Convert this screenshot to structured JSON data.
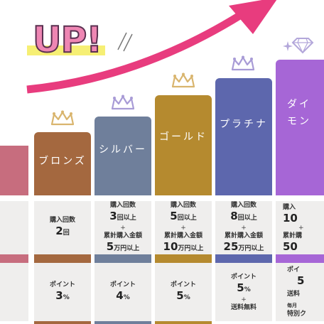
{
  "banner": {
    "title": "UP!"
  },
  "colors": {
    "arrow": "#e83c7e",
    "crown": "#a89bd6",
    "crown_gold": "#d9b56e",
    "panel": "#efeeed",
    "bronze": "#a4683f",
    "silver": "#6f7f9b",
    "gold": "#b58a2f",
    "platinum": "#5d67ad",
    "diamond": "#a666d6"
  },
  "tiers": [
    {
      "name": "ブロンズ",
      "count_label": "購入回数",
      "count_value": "2",
      "count_unit": "回",
      "point_label": "ポイント",
      "point_value": "3",
      "point_unit": "%"
    },
    {
      "name": "シルバー",
      "count_label": "購入回数",
      "count_value": "3",
      "count_unit": "回以上",
      "plus": "+",
      "amount_label": "累計購入金額",
      "amount_value": "5",
      "amount_unit": "万円以上",
      "point_label": "ポイント",
      "point_value": "4",
      "point_unit": "%"
    },
    {
      "name": "ゴールド",
      "count_label": "購入回数",
      "count_value": "5",
      "count_unit": "回以上",
      "plus": "+",
      "amount_label": "累計購入金額",
      "amount_value": "10",
      "amount_unit": "万円以上",
      "point_label": "ポイント",
      "point_value": "5",
      "point_unit": "%"
    },
    {
      "name": "プラチナ",
      "count_label": "購入回数",
      "count_value": "8",
      "count_unit": "回以上",
      "plus": "+",
      "amount_label": "累計購入金額",
      "amount_value": "25",
      "amount_unit": "万円以上",
      "point_label": "ポイント",
      "point_value": "5",
      "point_unit": "%",
      "extra_plus": "+",
      "extra": "送料無料"
    },
    {
      "name_line1": "ダイ",
      "name_line2": "モン",
      "count_label": "購入",
      "count_value": "10",
      "plus": "+",
      "amount_label": "累計購",
      "amount_value": "50",
      "point_label": "ポイ",
      "point_value": "5",
      "extra": "送料",
      "monthly": "毎月",
      "special": "特別ク"
    }
  ]
}
